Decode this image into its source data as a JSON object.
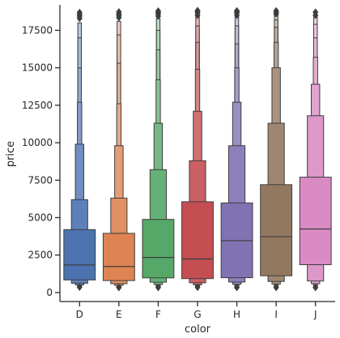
{
  "chart_data": {
    "type": "boxen",
    "xlabel": "color",
    "ylabel": "price",
    "ylim": [
      -600,
      19200
    ],
    "yticks": [
      0,
      2500,
      5000,
      7500,
      10000,
      12500,
      15000,
      17500
    ],
    "ytick_labels": [
      "0",
      "2500",
      "5000",
      "7500",
      "10000",
      "12500",
      "15000",
      "17500"
    ],
    "grid": false,
    "categories": [
      "D",
      "E",
      "F",
      "G",
      "H",
      "I",
      "J"
    ],
    "colors": [
      "#4c72b0",
      "#dd8452",
      "#55a868",
      "#c44e52",
      "#8172b3",
      "#937860",
      "#da8bc3"
    ],
    "series": [
      {
        "category": "D",
        "median": 1840,
        "min": 360,
        "max": 18690,
        "levels": [
          [
            840,
            4200
          ],
          [
            620,
            6200
          ],
          [
            510,
            9900
          ],
          [
            450,
            12700
          ],
          [
            400,
            15000
          ],
          [
            380,
            17000
          ],
          [
            370,
            18000
          ]
        ],
        "outliers_high": [
          18300,
          18450,
          18550,
          18690
        ],
        "outliers_low": [
          360
        ]
      },
      {
        "category": "E",
        "median": 1740,
        "min": 330,
        "max": 18730,
        "levels": [
          [
            800,
            3950
          ],
          [
            590,
            6300
          ],
          [
            480,
            9800
          ],
          [
            430,
            12600
          ],
          [
            390,
            15300
          ],
          [
            360,
            17200
          ],
          [
            350,
            18100
          ]
        ],
        "outliers_high": [
          18350,
          18500,
          18600,
          18730
        ],
        "outliers_low": [
          330
        ]
      },
      {
        "category": "F",
        "median": 2340,
        "min": 340,
        "max": 18790,
        "levels": [
          [
            980,
            4880
          ],
          [
            690,
            8200
          ],
          [
            540,
            11300
          ],
          [
            470,
            14200
          ],
          [
            420,
            16200
          ],
          [
            390,
            17500
          ],
          [
            370,
            18300
          ]
        ],
        "outliers_high": [
          18450,
          18600,
          18700,
          18790
        ],
        "outliers_low": [
          340
        ]
      },
      {
        "category": "G",
        "median": 2240,
        "min": 350,
        "max": 18820,
        "levels": [
          [
            930,
            6060
          ],
          [
            650,
            8800
          ],
          [
            520,
            12100
          ],
          [
            450,
            14900
          ],
          [
            410,
            16700
          ],
          [
            380,
            17800
          ],
          [
            370,
            18400
          ]
        ],
        "outliers_high": [
          18500,
          18650,
          18750,
          18820
        ],
        "outliers_low": [
          350
        ]
      },
      {
        "category": "H",
        "median": 3460,
        "min": 340,
        "max": 18800,
        "levels": [
          [
            990,
            5980
          ],
          [
            700,
            9800
          ],
          [
            550,
            12700
          ],
          [
            470,
            15000
          ],
          [
            420,
            16600
          ],
          [
            390,
            17800
          ],
          [
            370,
            18400
          ]
        ],
        "outliers_high": [
          18500,
          18650,
          18750,
          18800
        ],
        "outliers_low": [
          340
        ]
      },
      {
        "category": "I",
        "median": 3730,
        "min": 340,
        "max": 18800,
        "levels": [
          [
            1120,
            7200
          ],
          [
            740,
            11300
          ],
          [
            570,
            15000
          ],
          [
            480,
            16700
          ],
          [
            430,
            17700
          ],
          [
            400,
            18200
          ],
          [
            380,
            18500
          ]
        ],
        "outliers_high": [
          18600,
          18700,
          18800
        ],
        "outliers_low": [
          340
        ]
      },
      {
        "category": "J",
        "median": 4240,
        "min": 340,
        "max": 18710,
        "levels": [
          [
            1860,
            7700
          ],
          [
            770,
            11800
          ],
          [
            590,
            13900
          ],
          [
            500,
            15700
          ],
          [
            450,
            17000
          ],
          [
            410,
            17900
          ],
          [
            390,
            18400
          ]
        ],
        "outliers_high": [
          18500,
          18710
        ],
        "outliers_low": [
          340
        ]
      }
    ]
  }
}
